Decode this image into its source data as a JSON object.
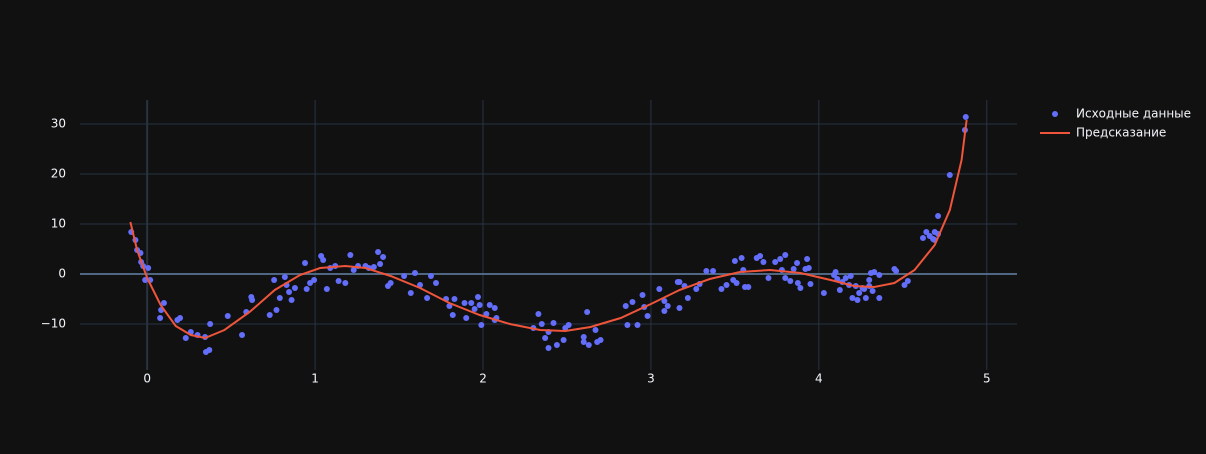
{
  "chart_data": {
    "type": "scatter",
    "xlim": [
      -0.4,
      5.18
    ],
    "ylim": [
      -19.2,
      34.8
    ],
    "xticks": [
      0,
      1,
      2,
      3,
      4,
      5
    ],
    "yticks": [
      {
        "value": -10,
        "label": "−10"
      },
      0,
      10,
      20,
      30
    ],
    "grid": true,
    "legend": "right",
    "series": [
      {
        "name": "Исходные данные",
        "color": "#636efa",
        "mode": "markers",
        "x": [
          -0.095,
          -0.07,
          -0.06,
          -0.04,
          -0.036,
          -0.024,
          0.006,
          -0.012,
          0.018,
          0.083,
          0.1,
          0.077,
          0.18,
          0.196,
          0.23,
          0.26,
          0.3,
          0.345,
          0.35,
          0.37,
          0.375,
          0.48,
          0.565,
          0.59,
          0.62,
          0.625,
          0.73,
          0.756,
          0.77,
          0.79,
          0.82,
          0.83,
          0.845,
          0.86,
          0.88,
          0.94,
          0.95,
          0.97,
          0.994,
          1.036,
          1.048,
          1.07,
          1.09,
          1.12,
          1.14,
          1.18,
          1.21,
          1.23,
          1.256,
          1.3,
          1.32,
          1.35,
          1.375,
          1.387,
          1.405,
          1.434,
          1.45,
          1.53,
          1.57,
          1.595,
          1.625,
          1.667,
          1.69,
          1.72,
          1.78,
          1.8,
          1.82,
          1.83,
          1.89,
          1.9,
          1.93,
          1.95,
          1.97,
          1.98,
          1.99,
          2.02,
          2.04,
          2.07,
          2.07,
          2.08,
          2.3,
          2.33,
          2.35,
          2.37,
          2.39,
          2.39,
          2.42,
          2.44,
          2.48,
          2.49,
          2.51,
          2.6,
          2.6,
          2.62,
          2.63,
          2.67,
          2.68,
          2.7,
          2.85,
          2.86,
          2.89,
          2.92,
          2.95,
          2.96,
          2.98,
          3.05,
          3.08,
          3.08,
          3.1,
          3.16,
          3.17,
          3.17,
          3.2,
          3.22,
          3.27,
          3.29,
          3.33,
          3.37,
          3.42,
          3.45,
          3.49,
          3.5,
          3.51,
          3.54,
          3.55,
          3.56,
          3.58,
          3.63,
          3.65,
          3.67,
          3.7,
          3.74,
          3.77,
          3.78,
          3.8,
          3.8,
          3.83,
          3.85,
          3.87,
          3.875,
          3.89,
          3.92,
          3.93,
          3.94,
          3.95,
          4.03,
          4.09,
          4.1,
          4.11,
          4.125,
          4.14,
          4.16,
          4.18,
          4.19,
          4.2,
          4.22,
          4.23,
          4.24,
          4.26,
          4.27,
          4.28,
          4.3,
          4.3,
          4.31,
          4.32,
          4.33,
          4.36,
          4.36,
          4.45,
          4.46,
          4.51,
          4.53,
          4.62,
          4.64,
          4.66,
          4.68,
          4.69,
          4.69,
          4.71,
          4.71,
          4.78,
          4.87,
          4.875
        ],
        "values": [
          8.4,
          6.8,
          4.8,
          4.2,
          2.4,
          1.6,
          1.2,
          -1.2,
          -1.2,
          -7.2,
          -5.8,
          -8.8,
          -9.2,
          -8.8,
          -12.8,
          -11.6,
          -12.2,
          -12.6,
          -15.6,
          -15.2,
          -10,
          -8.4,
          -12.2,
          -7.6,
          -4.6,
          -5.2,
          -8.2,
          -1.2,
          -7.2,
          -4.8,
          -0.6,
          -2.2,
          -3.6,
          -5.2,
          -2.8,
          2.2,
          -3,
          -1.8,
          -1.2,
          3.6,
          2.8,
          -3,
          1.2,
          1.6,
          -1.4,
          -1.8,
          3.8,
          0.8,
          1.6,
          1.6,
          1.2,
          1.4,
          4.4,
          2,
          3.4,
          -2.4,
          -1.8,
          -0.4,
          -3.8,
          0.2,
          -2.2,
          -4.8,
          -0.4,
          -1.8,
          -5,
          -6.4,
          -8.2,
          -5,
          -5.8,
          -8.8,
          -5.8,
          -7,
          -4.6,
          -6.2,
          -10.2,
          -8,
          -6.2,
          -6.8,
          -9.2,
          -8.8,
          -10.8,
          -8,
          -10,
          -12.8,
          -11.6,
          -14.8,
          -9.8,
          -14.2,
          -13.2,
          -10.8,
          -10.2,
          -12.6,
          -13.6,
          -7.6,
          -14.2,
          -11.2,
          -13.6,
          -13.2,
          -6.4,
          -10.2,
          -5.6,
          -10.2,
          -4.2,
          -6.6,
          -8.4,
          -3,
          -5.4,
          -7.4,
          -6.4,
          -1.6,
          -1.6,
          -6.8,
          -2.4,
          -4.8,
          -3,
          -2,
          0.6,
          0.6,
          -3,
          -2.2,
          -1.2,
          2.6,
          -1.8,
          3.2,
          0.8,
          -2.6,
          -2.6,
          3.2,
          3.6,
          2.4,
          -0.8,
          2.4,
          3,
          0.8,
          -0.8,
          3.8,
          -1.4,
          1,
          2.2,
          -1.8,
          -2.8,
          1,
          3,
          1.2,
          -2,
          -3.8,
          -0.2,
          0.4,
          -1,
          -3.2,
          -1.6,
          -0.8,
          -2.2,
          -0.4,
          -4.8,
          -2.4,
          -5.2,
          -3.8,
          -2.8,
          -3,
          -4.8,
          -1.2,
          -2.4,
          0.2,
          -3.4,
          0.4,
          -0.2,
          -4.8,
          1,
          0.6,
          -2.2,
          -1.4,
          7.2,
          8.4,
          7.6,
          7,
          6.8,
          8.4,
          11.6,
          8,
          19.8,
          28.8,
          31.4
        ]
      },
      {
        "name": "Предсказание",
        "color": "#ef553b",
        "mode": "lines",
        "x": [
          -0.1,
          -0.06,
          0,
          0.08,
          0.17,
          0.26,
          0.345,
          0.46,
          0.61,
          0.76,
          0.91,
          1.03,
          1.18,
          1.3,
          1.45,
          1.625,
          1.8,
          1.98,
          2.16,
          2.34,
          2.49,
          2.64,
          2.82,
          3.0,
          3.17,
          3.35,
          3.53,
          3.71,
          3.89,
          4.07,
          4.21,
          4.33,
          4.45,
          4.57,
          4.69,
          4.78,
          4.85,
          4.88
        ],
        "values": [
          10.4,
          4.8,
          -0.8,
          -6.2,
          -10.4,
          -12.2,
          -12.8,
          -11.2,
          -7.6,
          -3.2,
          -0.2,
          1.2,
          1.6,
          1.2,
          -0.4,
          -2.8,
          -5.8,
          -8.2,
          -10,
          -11.2,
          -11.4,
          -10.6,
          -8.8,
          -6,
          -3.2,
          -1,
          0.4,
          0.8,
          0.2,
          -1.2,
          -2.4,
          -2.6,
          -1.8,
          0.8,
          5.8,
          12.8,
          22.8,
          30.8
        ]
      }
    ]
  }
}
